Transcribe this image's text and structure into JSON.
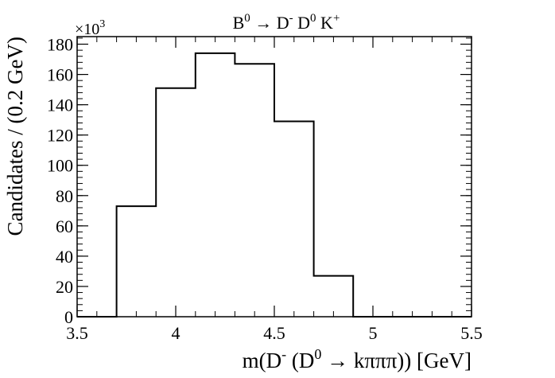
{
  "chart_data": {
    "type": "histogram",
    "title": "B^0 → D^- D^0 K^+",
    "title_parts": {
      "b": "B",
      "b_sup": "0",
      "arrow": " → D",
      "d_sup": "-",
      "d0": " D",
      "d0_sup": "0",
      "k": " K",
      "k_sup": "+"
    },
    "xlabel": "m(D^- (D^0 → kπππ)) [GeV]",
    "xlabel_parts": {
      "m": "m(D",
      "sup1": "-",
      "mid": " (D",
      "sup2": "0",
      "rest": " → kπππ)) [GeV]"
    },
    "ylabel": "Candidates / (0.2 GeV)",
    "y_multiplier": {
      "base": "×10",
      "exp": "3"
    },
    "xlim": [
      3.5,
      5.5
    ],
    "ylim": [
      0,
      185
    ],
    "x_ticks": [
      3.5,
      4,
      4.5,
      5,
      5.5
    ],
    "x_tick_labels": [
      "3.5",
      "4",
      "4.5",
      "5",
      "5.5"
    ],
    "y_ticks": [
      0,
      20,
      40,
      60,
      80,
      100,
      120,
      140,
      160,
      180
    ],
    "y_tick_labels": [
      "0",
      "20",
      "40",
      "60",
      "80",
      "100",
      "120",
      "140",
      "160",
      "180"
    ],
    "bin_edges": [
      3.5,
      3.7,
      3.9,
      4.1,
      4.3,
      4.5,
      4.7,
      4.9,
      5.1,
      5.3,
      5.5
    ],
    "values": [
      0,
      73,
      151,
      174,
      167,
      129,
      27,
      0,
      0,
      0
    ],
    "grid": false,
    "line_color": "#000000"
  }
}
